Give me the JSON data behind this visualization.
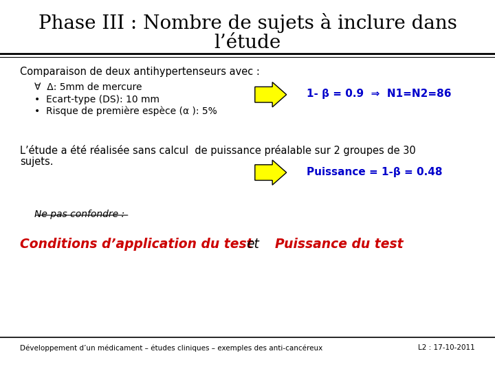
{
  "title_line1": "Phase III : Nombre de sujets à inclure dans",
  "title_line2": "l’étude",
  "bg_color": "#ffffff",
  "title_color": "#000000",
  "title_fontsize": 20,
  "subtitle": "Comparaison de deux antihypertenseurs avec :",
  "bullet_forall": "∀  Δ: 5mm de mercure",
  "bullet1": "Ecart-type (DS): 10 mm",
  "bullet2": "Risque de première espèce (α ): 5%",
  "arrow1_result": "1- β = 0.9  ⇒  N1=N2=86",
  "paragraph2_line1": "L’étude a été réalisée sans calcul  de puissance préalable sur 2 groupes de 30",
  "paragraph2_line2": "sujets.",
  "arrow2_result": "Puissance = 1-β = 0.48",
  "ne_pas": "Ne pas confondre :",
  "conditions_text1": "Conditions d’application du test",
  "conditions_et": "et",
  "conditions_text2": "Puissance du test",
  "footer_left": "Développement d’un médicament – études cliniques – exemples des anti-cancéreux",
  "footer_right": "L2 : 17-10-2011",
  "text_color": "#000000",
  "blue_color": "#0000cc",
  "red_color": "#cc0000",
  "arrow_color": "#ffff00",
  "arrow_border": "#000000"
}
